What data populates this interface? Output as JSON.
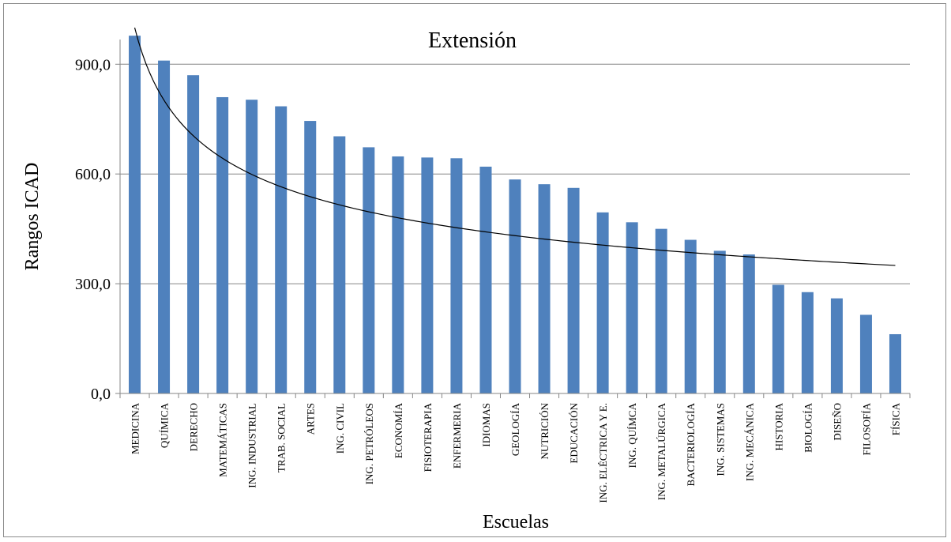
{
  "chart_data": {
    "type": "bar",
    "title": "Extensión",
    "xlabel": "Escuelas",
    "ylabel": "Rangos  ICAD",
    "ylim": [
      0,
      1000
    ],
    "yticks": [
      0,
      300,
      600,
      900
    ],
    "ytick_labels": [
      "0,0",
      "300,0",
      "600,0",
      "900,0"
    ],
    "grid": true,
    "bar_color": "#4F81BD",
    "categories": [
      "MEDICINA",
      "QUÍMICA",
      "DERECHO",
      "MATEMÁTICAS",
      "ING. INDUSTRIAL",
      "TRAB. SOCIAL",
      "ARTES",
      "ING. CIVIL",
      "ING. PETRÓLEOS",
      "ECONOMÍA",
      "FISIOTERAPIA",
      "ENFERMERIA",
      "IDIOMAS",
      "GEOLOGÍA",
      "NUTRICIÓN",
      "EDUCACIÓN",
      "ING. ELÉCTRICA Y E.",
      "ING. QUÍMCA",
      "ING. METALÚRGICA",
      "BACTERIOLOGÍA",
      "ING. SISTEMAS",
      "ING. MECÁNICA",
      "HISTORIA",
      "BIOLOGÍA",
      "DISEÑO",
      "FILOSOFÍA",
      "FÍSICA"
    ],
    "values": [
      978,
      910,
      870,
      810,
      803,
      785,
      745,
      703,
      673,
      648,
      645,
      643,
      620,
      585,
      572,
      562,
      495,
      468,
      450,
      420,
      390,
      380,
      297,
      277,
      260,
      215,
      162
    ],
    "trendline": {
      "type": "power",
      "y_first": 1000,
      "y_last": 350
    }
  }
}
